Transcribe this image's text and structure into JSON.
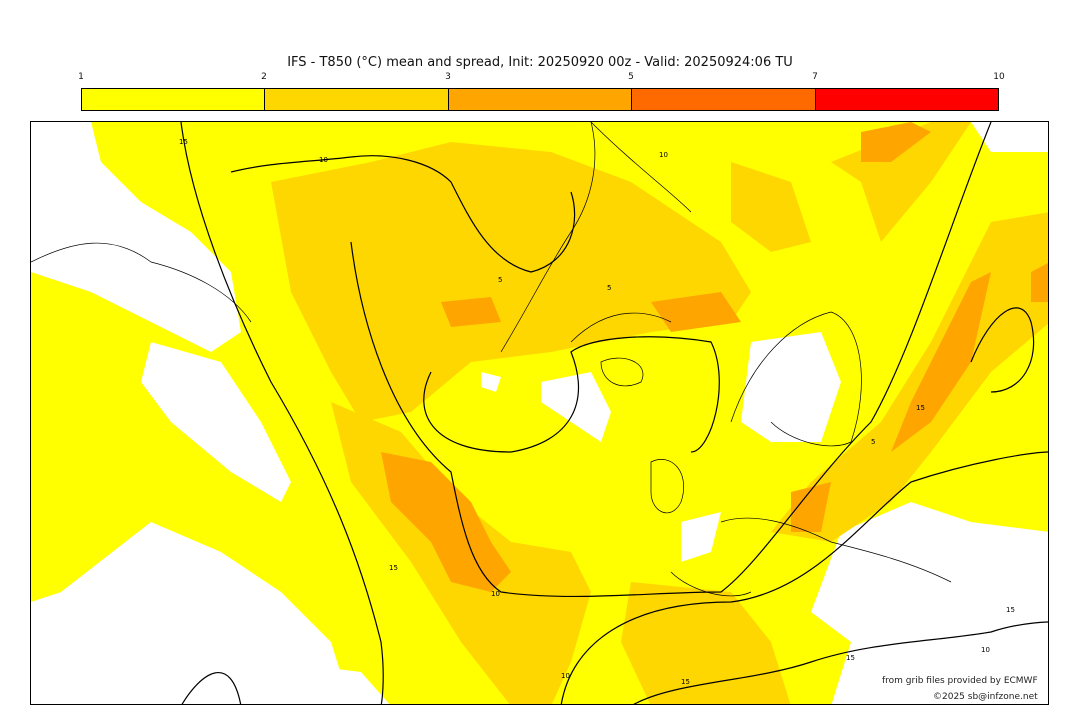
{
  "title": "IFS - T850 (°C) mean and spread, Init: 20250920 00z - Valid: 20250924:06 TU",
  "colorbar": {
    "ticks": [
      "1",
      "2",
      "3",
      "5",
      "7",
      "10"
    ],
    "colors": [
      "#ffff00",
      "#ffd700",
      "#ffa500",
      "#ff6a00",
      "#ff0000"
    ]
  },
  "map": {
    "contour_labels": [
      "15",
      "10",
      "5",
      "5",
      "10",
      "15",
      "10",
      "5",
      "10",
      "15",
      "15",
      "15",
      "10",
      "15"
    ],
    "colors": {
      "spread_low": "#ffff00",
      "spread_mid": "#ffd700",
      "spread_high": "#ffa500",
      "none": "#ffffff"
    }
  },
  "credits": {
    "line1": "from grib files provided by ECMWF",
    "line2": "©2025 sb@infzone.net"
  }
}
